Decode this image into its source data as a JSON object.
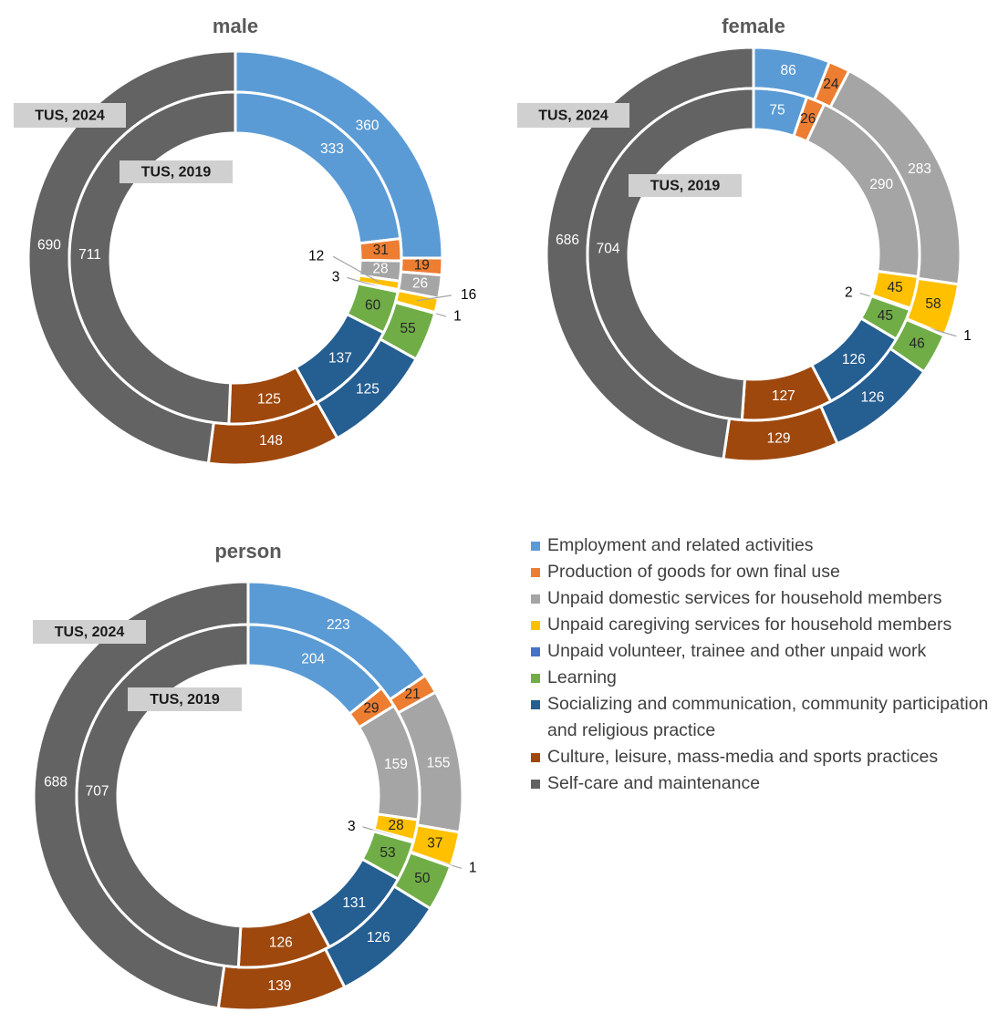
{
  "chart_data": {
    "type": "donut",
    "categories": [
      "Employment and related activities",
      "Production of goods for own final use",
      "Unpaid domestic services for household members",
      "Unpaid caregiving services for household members",
      "Unpaid volunteer, trainee and other unpaid work",
      "Learning",
      "Socializing and communication, community participation and religious practice",
      "Culture, leisure, mass-media and sports practices",
      "Self-care and maintenance"
    ],
    "colors": [
      "#5b9bd5",
      "#ed7d31",
      "#a5a5a5",
      "#ffc000",
      "#4472c4",
      "#70ad47",
      "#255e91",
      "#9e480e",
      "#636363"
    ],
    "legend_position": "right",
    "charts": [
      {
        "title": "male",
        "outer_label": "TUS, 2024",
        "inner_label": "TUS, 2019",
        "series": [
          {
            "name": "TUS, 2024",
            "values": [
              360,
              19,
              26,
              16,
              1,
              55,
              125,
              148,
              690
            ]
          },
          {
            "name": "TUS, 2019",
            "values": [
              333,
              31,
              28,
              12,
              3,
              60,
              137,
              125,
              711
            ]
          }
        ]
      },
      {
        "title": "female",
        "outer_label": "TUS, 2024",
        "inner_label": "TUS, 2019",
        "series": [
          {
            "name": "TUS, 2024",
            "values": [
              86,
              24,
              283,
              58,
              1,
              46,
              126,
              129,
              686
            ]
          },
          {
            "name": "TUS, 2019",
            "values": [
              75,
              26,
              290,
              45,
              2,
              45,
              126,
              127,
              704
            ]
          }
        ]
      },
      {
        "title": "person",
        "outer_label": "TUS, 2024",
        "inner_label": "TUS, 2019",
        "series": [
          {
            "name": "TUS, 2024",
            "values": [
              223,
              21,
              155,
              37,
              1,
              50,
              126,
              139,
              688
            ]
          },
          {
            "name": "TUS, 2019",
            "values": [
              204,
              29,
              159,
              28,
              3,
              53,
              131,
              126,
              707
            ]
          }
        ]
      }
    ]
  }
}
